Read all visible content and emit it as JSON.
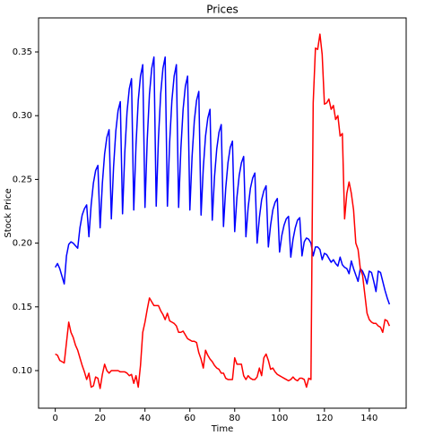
{
  "chart_data": {
    "type": "line",
    "title": "Prices",
    "x_label": "Time",
    "y_label": "Stock Price",
    "x": [
      0,
      1,
      2,
      3,
      4,
      5,
      6,
      7,
      8,
      9,
      10,
      11,
      12,
      13,
      14,
      15,
      16,
      17,
      18,
      19,
      20,
      21,
      22,
      23,
      24,
      25,
      26,
      27,
      28,
      29,
      30,
      31,
      32,
      33,
      34,
      35,
      36,
      37,
      38,
      39,
      40,
      41,
      42,
      43,
      44,
      45,
      46,
      47,
      48,
      49,
      50,
      51,
      52,
      53,
      54,
      55,
      56,
      57,
      58,
      59,
      60,
      61,
      62,
      63,
      64,
      65,
      66,
      67,
      68,
      69,
      70,
      71,
      72,
      73,
      74,
      75,
      76,
      77,
      78,
      79,
      80,
      81,
      82,
      83,
      84,
      85,
      86,
      87,
      88,
      89,
      90,
      91,
      92,
      93,
      94,
      95,
      96,
      97,
      98,
      99,
      100,
      101,
      102,
      103,
      104,
      105,
      106,
      107,
      108,
      109,
      110,
      111,
      112,
      113,
      114,
      115,
      116,
      117,
      118,
      119,
      120,
      121,
      122,
      123,
      124,
      125,
      126,
      127,
      128,
      129,
      130,
      131,
      132,
      133,
      134,
      135,
      136,
      137,
      138,
      139,
      140,
      141,
      142,
      143,
      144,
      145,
      146,
      147,
      148,
      149
    ],
    "series": [
      {
        "color": "#0000ff",
        "values": [
          0.181,
          0.184,
          0.18,
          0.174,
          0.168,
          0.19,
          0.199,
          0.201,
          0.2,
          0.198,
          0.196,
          0.212,
          0.222,
          0.227,
          0.23,
          0.205,
          0.23,
          0.247,
          0.257,
          0.261,
          0.212,
          0.247,
          0.27,
          0.283,
          0.289,
          0.219,
          0.26,
          0.288,
          0.304,
          0.311,
          0.223,
          0.271,
          0.303,
          0.321,
          0.329,
          0.226,
          0.277,
          0.312,
          0.331,
          0.34,
          0.228,
          0.281,
          0.317,
          0.337,
          0.346,
          0.229,
          0.282,
          0.317,
          0.337,
          0.346,
          0.229,
          0.279,
          0.312,
          0.331,
          0.34,
          0.228,
          0.274,
          0.305,
          0.323,
          0.331,
          0.226,
          0.268,
          0.296,
          0.312,
          0.319,
          0.222,
          0.259,
          0.284,
          0.298,
          0.305,
          0.218,
          0.252,
          0.274,
          0.287,
          0.293,
          0.213,
          0.243,
          0.263,
          0.275,
          0.28,
          0.209,
          0.236,
          0.253,
          0.263,
          0.268,
          0.205,
          0.228,
          0.243,
          0.251,
          0.255,
          0.2,
          0.22,
          0.234,
          0.241,
          0.245,
          0.197,
          0.214,
          0.226,
          0.232,
          0.235,
          0.193,
          0.206,
          0.214,
          0.219,
          0.221,
          0.189,
          0.203,
          0.212,
          0.218,
          0.22,
          0.19,
          0.201,
          0.204,
          0.203,
          0.2,
          0.19,
          0.197,
          0.197,
          0.195,
          0.187,
          0.192,
          0.191,
          0.188,
          0.185,
          0.187,
          0.184,
          0.182,
          0.189,
          0.183,
          0.181,
          0.18,
          0.176,
          0.186,
          0.18,
          0.175,
          0.17,
          0.18,
          0.178,
          0.174,
          0.168,
          0.178,
          0.177,
          0.17,
          0.162,
          0.178,
          0.177,
          0.17,
          0.163,
          0.157,
          0.152
        ]
      },
      {
        "color": "#ff0000",
        "values": [
          0.113,
          0.112,
          0.108,
          0.107,
          0.106,
          0.122,
          0.138,
          0.13,
          0.126,
          0.12,
          0.116,
          0.11,
          0.104,
          0.099,
          0.093,
          0.098,
          0.087,
          0.088,
          0.095,
          0.094,
          0.086,
          0.097,
          0.105,
          0.1,
          0.098,
          0.1,
          0.1,
          0.1,
          0.1,
          0.099,
          0.099,
          0.099,
          0.098,
          0.096,
          0.097,
          0.09,
          0.096,
          0.087,
          0.104,
          0.13,
          0.138,
          0.148,
          0.157,
          0.154,
          0.151,
          0.151,
          0.151,
          0.147,
          0.144,
          0.14,
          0.145,
          0.139,
          0.138,
          0.137,
          0.135,
          0.13,
          0.13,
          0.131,
          0.128,
          0.125,
          0.124,
          0.123,
          0.123,
          0.122,
          0.114,
          0.109,
          0.102,
          0.116,
          0.112,
          0.109,
          0.107,
          0.104,
          0.102,
          0.101,
          0.098,
          0.098,
          0.094,
          0.093,
          0.093,
          0.093,
          0.11,
          0.105,
          0.105,
          0.105,
          0.096,
          0.093,
          0.096,
          0.094,
          0.093,
          0.093,
          0.095,
          0.102,
          0.096,
          0.11,
          0.113,
          0.108,
          0.101,
          0.102,
          0.099,
          0.097,
          0.096,
          0.095,
          0.094,
          0.093,
          0.092,
          0.093,
          0.095,
          0.093,
          0.092,
          0.094,
          0.094,
          0.093,
          0.087,
          0.094,
          0.093,
          0.31,
          0.353,
          0.352,
          0.364,
          0.348,
          0.309,
          0.31,
          0.313,
          0.305,
          0.308,
          0.297,
          0.3,
          0.284,
          0.286,
          0.219,
          0.239,
          0.248,
          0.239,
          0.226,
          0.2,
          0.195,
          0.18,
          0.175,
          0.16,
          0.145,
          0.14,
          0.138,
          0.137,
          0.137,
          0.135,
          0.134,
          0.13,
          0.14,
          0.139,
          0.135
        ]
      }
    ],
    "xlim": [
      -7.45,
      156.45
    ],
    "ylim": [
      0.0705,
      0.3767
    ],
    "xticks": [
      0,
      20,
      40,
      60,
      80,
      100,
      120,
      140
    ],
    "yticks": [
      {
        "value": 0.1,
        "label": "0.10"
      },
      0.15,
      {
        "value": 0.2,
        "label": "0.20"
      },
      0.25,
      {
        "value": 0.3,
        "label": "0.30"
      },
      0.35
    ],
    "grid": false
  }
}
